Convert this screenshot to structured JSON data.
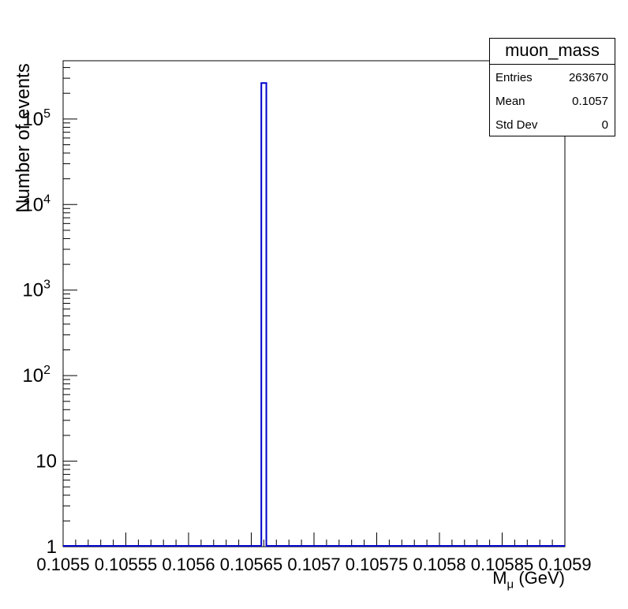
{
  "chart_data": {
    "type": "bar",
    "title": "",
    "xlabel_main": "M",
    "xlabel_sub": "μ",
    "xlabel_unit": "(GeV)",
    "ylabel": "Number of events",
    "x_tick_labels": [
      "0.1055",
      "0.10555",
      "0.1056",
      "0.10565",
      "0.1057",
      "0.10575",
      "0.1058",
      "0.10585",
      "0.1059"
    ],
    "x_ticks": [
      0.1055,
      0.10555,
      0.1056,
      0.10565,
      0.1057,
      0.10575,
      0.1058,
      0.10585,
      0.1059
    ],
    "xlim": [
      0.1055,
      0.1059
    ],
    "ylim": [
      1,
      480000
    ],
    "y_scale": "log",
    "y_ticks": [
      {
        "value": 1,
        "base": "1",
        "exp": ""
      },
      {
        "value": 10,
        "base": "10",
        "exp": ""
      },
      {
        "value": 100,
        "base": "10",
        "exp": "2"
      },
      {
        "value": 1000,
        "base": "10",
        "exp": "3"
      },
      {
        "value": 10000,
        "base": "10",
        "exp": "4"
      },
      {
        "value": 100000,
        "base": "10",
        "exp": "5"
      }
    ],
    "bins": [
      {
        "x_low": 0.105658,
        "x_high": 0.105662,
        "count": 263670
      }
    ],
    "line_color": "#0000cc",
    "grid": false
  },
  "statbox": {
    "name": "muon_mass",
    "rows": [
      {
        "key": "Entries",
        "value": "263670"
      },
      {
        "key": "Mean",
        "value": "0.1057"
      },
      {
        "key": "Std Dev",
        "value": "0"
      }
    ]
  }
}
